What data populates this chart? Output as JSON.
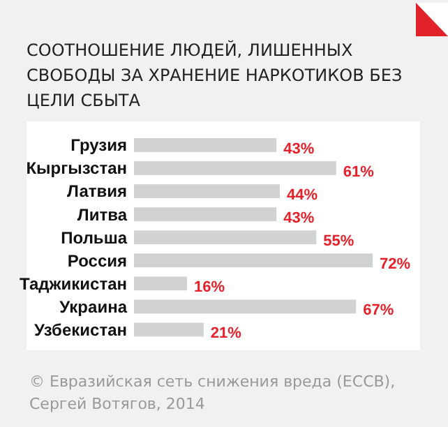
{
  "chart_data": {
    "type": "bar",
    "orientation": "horizontal",
    "title": "СООТНОШЕНИЕ ЛЮДЕЙ, ЛИШЕННЫХ СВОБОДЫ ЗА ХРАНЕНИЕ НАРКОТИКОВ БЕЗ ЦЕЛИ СБЫТА",
    "categories": [
      "Грузия",
      "Кыргызстан",
      "Латвия",
      "Литва",
      "Польша",
      "Россия",
      "Таджикистан",
      "Украина",
      "Узбекистан"
    ],
    "values": [
      43,
      61,
      44,
      43,
      55,
      72,
      16,
      67,
      21
    ],
    "value_labels": [
      "43%",
      "61%",
      "44%",
      "43%",
      "55%",
      "72%",
      "16%",
      "67%",
      "21%"
    ],
    "color": "#d1d2d4",
    "annotations": [
      "© Евразийская сеть снижения вреда (ЕССВ), Сергей Вотягов, 2014"
    ]
  }
}
